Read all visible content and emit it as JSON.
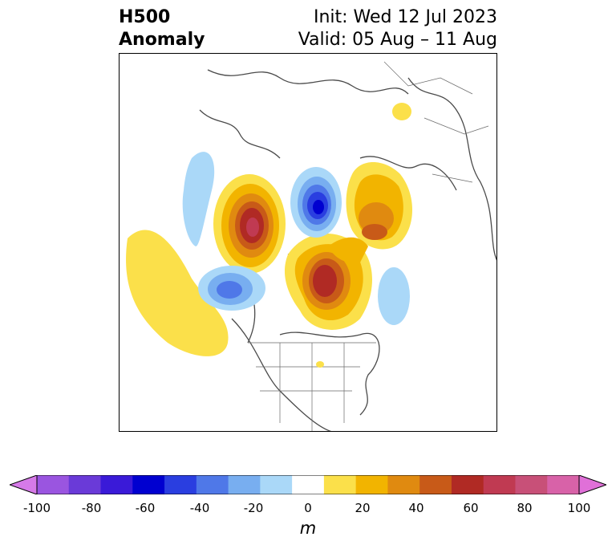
{
  "header": {
    "title_line1": "H500",
    "title_line2": "Anomaly",
    "init_text": "Init: Wed 12 Jul 2023",
    "valid_text": "Valid: 05 Aug – 11 Aug"
  },
  "colorbar": {
    "unit": "m",
    "ticks": [
      "-100",
      "-80",
      "-60",
      "-40",
      "-20",
      "0",
      "20",
      "40",
      "60",
      "80",
      "100"
    ],
    "colors": [
      "#d67ae8",
      "#9a55e0",
      "#6a3ad8",
      "#3a1ad8",
      "#0000d0",
      "#2a3ee0",
      "#4f78e8",
      "#78aef0",
      "#aad8f8",
      "#ffffff",
      "#fbe04a",
      "#f2b400",
      "#e08a10",
      "#c85a18",
      "#b02a24",
      "#c03a52",
      "#c85078",
      "#d862a8",
      "#e070d8"
    ]
  },
  "map": {
    "field": "500 hPa geopotential height anomaly",
    "projection": "polar stereographic, North America / North Atlantic sector"
  }
}
